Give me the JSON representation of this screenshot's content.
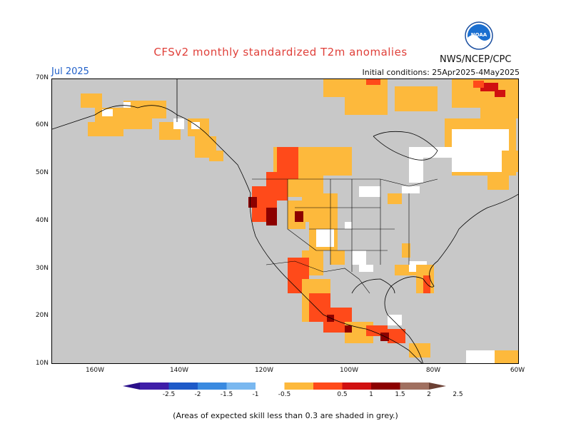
{
  "header": {
    "title": "CFSv2 monthly standardized T2m anomalies",
    "period": "Jul 2025",
    "initial_conditions": "Initial conditions: 25Apr2025-4May2025",
    "agency": "NWS/NCEP/CPC",
    "logo_text": "NOAA"
  },
  "axes": {
    "lat_labels": [
      "70N",
      "60N",
      "50N",
      "40N",
      "30N",
      "20N",
      "10N"
    ],
    "lon_labels": [
      "160W",
      "140W",
      "120W",
      "100W",
      "80W",
      "60W"
    ]
  },
  "colorbar": {
    "labels": [
      "-2.5",
      "-2",
      "-1.5",
      "-1",
      "-0.5",
      "0.5",
      "1",
      "1.5",
      "2",
      "2.5"
    ],
    "colors": [
      "#3f1ea8",
      "#1e5ac8",
      "#3a8ae0",
      "#7ab8f0",
      "#ffffff",
      "#fdb93c",
      "#ff4a1a",
      "#d01010",
      "#8c0000",
      "#a07060"
    ],
    "under_color": "#2a0f8a",
    "over_color": "#6b4034"
  },
  "map": {
    "land_color": "#c8c8c8",
    "skill_mask_color": "#c8c8c8"
  },
  "note": "(Areas of expected skill less than 0.3 are shaded in grey.)"
}
